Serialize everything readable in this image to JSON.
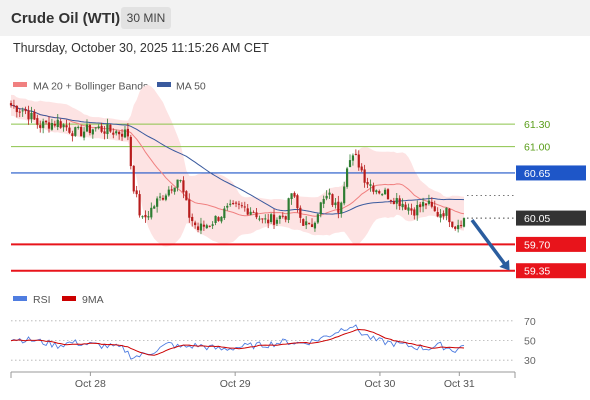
{
  "header": {
    "title": "Crude Oil (WTI)",
    "timeframe": "30 MIN",
    "datetime": "Thursday, October 30, 2025 11:15:26 AM CET"
  },
  "colors": {
    "band_fill": "#fde3e3",
    "ma20": "#f08080",
    "ma50": "#3a5a9e",
    "bull": "#2e7d32",
    "bear": "#b71c1c",
    "resistance": "#8bc34a",
    "pivot": "#1e56c8",
    "support": "#e8141b",
    "arrow": "#2a5d9f",
    "rsi": "#4f7de0",
    "rsi_ma": "#cc0000"
  },
  "chart_data": [
    {
      "type": "candlestick",
      "legend": [
        "MA 20 + Bollinger Bands",
        "MA 50"
      ],
      "ylim": [
        59.2,
        61.62
      ],
      "xticks": [
        {
          "label": "Oct 28",
          "x": 0.17
        },
        {
          "label": "Oct 29",
          "x": 0.48
        },
        {
          "label": "Oct 30",
          "x": 0.79
        },
        {
          "label": "Oct 31",
          "x": 0.96
        }
      ],
      "levels": [
        {
          "label": "61.30",
          "value": 61.3,
          "role": "resistance"
        },
        {
          "label": "61.00",
          "value": 61.0,
          "role": "resistance"
        },
        {
          "label": "60.65",
          "value": 60.65,
          "role": "pivot"
        },
        {
          "label": "59.70",
          "value": 59.7,
          "role": "support"
        },
        {
          "label": "59.35",
          "value": 59.35,
          "role": "support"
        }
      ],
      "last_price": {
        "label": "60.05",
        "value": 60.05
      },
      "forecast_arrow": {
        "from": 60.05,
        "to": 59.35
      },
      "price_anchors": [
        [
          0,
          61.55
        ],
        [
          0.03,
          61.48
        ],
        [
          0.06,
          61.28
        ],
        [
          0.1,
          61.33
        ],
        [
          0.14,
          61.18
        ],
        [
          0.18,
          61.25
        ],
        [
          0.22,
          61.2
        ],
        [
          0.25,
          61.18
        ],
        [
          0.26,
          60.55
        ],
        [
          0.28,
          60.0
        ],
        [
          0.31,
          60.25
        ],
        [
          0.34,
          60.45
        ],
        [
          0.36,
          60.6
        ],
        [
          0.38,
          60.1
        ],
        [
          0.4,
          59.9
        ],
        [
          0.43,
          60.0
        ],
        [
          0.46,
          60.15
        ],
        [
          0.49,
          60.2
        ],
        [
          0.52,
          60.15
        ],
        [
          0.54,
          60.0
        ],
        [
          0.57,
          60.05
        ],
        [
          0.59,
          60.1
        ],
        [
          0.6,
          60.4
        ],
        [
          0.62,
          60.05
        ],
        [
          0.64,
          59.9
        ],
        [
          0.66,
          60.2
        ],
        [
          0.68,
          60.35
        ],
        [
          0.7,
          60.15
        ],
        [
          0.71,
          60.4
        ],
        [
          0.72,
          60.8
        ],
        [
          0.74,
          60.85
        ],
        [
          0.76,
          60.55
        ],
        [
          0.78,
          60.45
        ],
        [
          0.81,
          60.35
        ],
        [
          0.84,
          60.25
        ],
        [
          0.86,
          60.15
        ],
        [
          0.89,
          60.25
        ],
        [
          0.91,
          60.1
        ],
        [
          0.93,
          60.15
        ],
        [
          0.95,
          59.95
        ],
        [
          0.97,
          60.05
        ]
      ]
    },
    {
      "type": "line",
      "legend": [
        "RSI",
        "9MA"
      ],
      "ylim": [
        20,
        80
      ],
      "yticks": [
        {
          "label": "70",
          "value": 70
        },
        {
          "label": "50",
          "value": 50
        },
        {
          "label": "30",
          "value": 30
        }
      ],
      "rsi_anchors": [
        [
          0,
          52
        ],
        [
          0.05,
          50
        ],
        [
          0.1,
          45
        ],
        [
          0.13,
          48
        ],
        [
          0.17,
          46
        ],
        [
          0.21,
          44
        ],
        [
          0.24,
          42
        ],
        [
          0.26,
          33
        ],
        [
          0.28,
          35
        ],
        [
          0.31,
          40
        ],
        [
          0.34,
          47
        ],
        [
          0.36,
          43
        ],
        [
          0.4,
          45
        ],
        [
          0.45,
          41
        ],
        [
          0.5,
          44
        ],
        [
          0.55,
          46
        ],
        [
          0.59,
          49
        ],
        [
          0.62,
          47
        ],
        [
          0.65,
          50
        ],
        [
          0.68,
          55
        ],
        [
          0.71,
          62
        ],
        [
          0.73,
          66
        ],
        [
          0.75,
          58
        ],
        [
          0.78,
          50
        ],
        [
          0.82,
          47
        ],
        [
          0.86,
          44
        ],
        [
          0.89,
          42
        ],
        [
          0.92,
          45
        ],
        [
          0.95,
          40
        ],
        [
          0.97,
          45
        ]
      ]
    }
  ]
}
